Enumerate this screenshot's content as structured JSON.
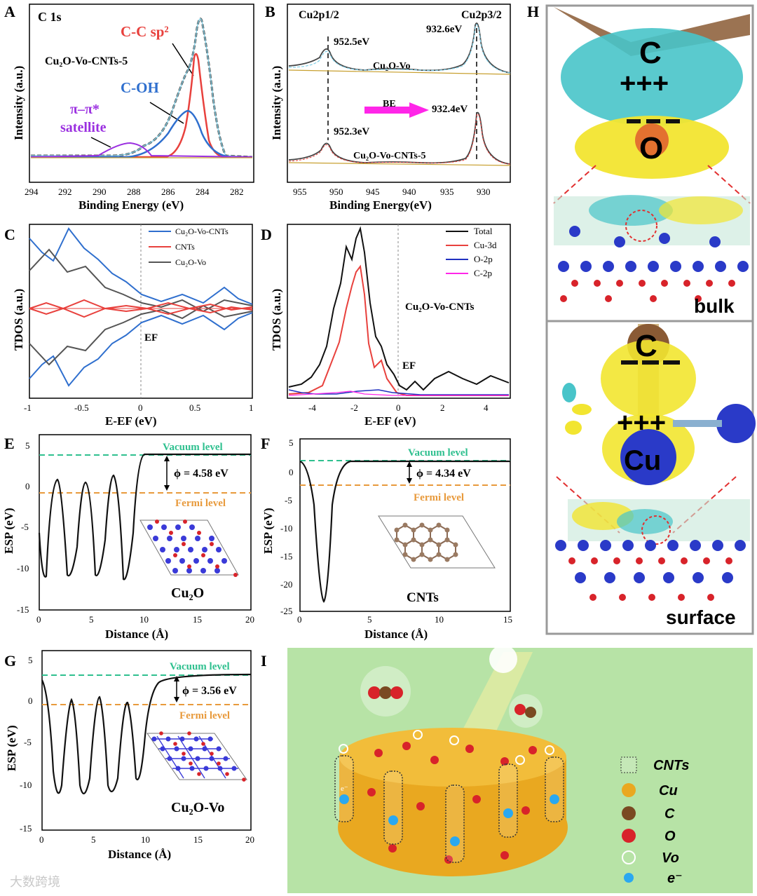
{
  "figure": {
    "panels": {
      "A": {
        "letter": "A",
        "element": "C 1s",
        "sample": "Cu₂O-Vo-CNTs-5",
        "peaks": [
          "C-C sp²",
          "C-OH",
          "π–π*",
          "satellite"
        ],
        "xlabel": "Binding Energy (eV)",
        "ylabel": "Intensity (a.u.)",
        "xticks": [
          "294",
          "292",
          "290",
          "288",
          "286",
          "284",
          "282"
        ]
      },
      "B": {
        "letter": "B",
        "labels": [
          "Cu2p1/2",
          "Cu2p3/2"
        ],
        "energies": [
          "952.5eV",
          "932.6eV",
          "952.3eV",
          "932.4eV"
        ],
        "arrow_label": "BE",
        "samples": [
          "Cu₂O-Vo",
          "Cu₂O-Vo-CNTs-5"
        ],
        "xlabel": "Binding Energy(eV)",
        "ylabel": "Intensity (a.u.)",
        "xticks": [
          "955",
          "950",
          "945",
          "940",
          "935",
          "930"
        ]
      },
      "C": {
        "letter": "C",
        "legend": [
          "Cu₂O-Vo-CNTs",
          "CNTs",
          "Cu₂O-Vo"
        ],
        "ef": "EF",
        "xlabel": "E-EF (eV)",
        "ylabel": "TDOS (a.u.)",
        "xticks": [
          "-1",
          "-0.5",
          "0",
          "0.5",
          "1"
        ]
      },
      "D": {
        "letter": "D",
        "legend": [
          "Total",
          "Cu-3d",
          "O-2p",
          "C-2p"
        ],
        "sample": "Cu₂O-Vo-CNTs",
        "ef": "EF",
        "xlabel": "E-EF (eV)",
        "ylabel": "TDOS (a.u.)",
        "xticks": [
          "-4",
          "-2",
          "0",
          "2",
          "4"
        ]
      },
      "E": {
        "letter": "E",
        "vacuum": "Vacuum level",
        "fermi": "Fermi level",
        "phi": "ϕ = 4.58 eV",
        "sample": "Cu₂O",
        "xlabel": "Distance (Å)",
        "ylabel": "ESP (eV)",
        "xticks": [
          "0",
          "5",
          "10",
          "15",
          "20"
        ],
        "yticks": [
          "5",
          "0",
          "-5",
          "-10",
          "-15"
        ]
      },
      "F": {
        "letter": "F",
        "vacuum": "Vacuum level",
        "fermi": "Fermi level",
        "phi": "ϕ = 4.34 eV",
        "sample": "CNTs",
        "xlabel": "Distance (Å)",
        "ylabel": "ESP (eV)",
        "xticks": [
          "0",
          "5",
          "10",
          "15"
        ],
        "yticks": [
          "5",
          "0",
          "-5",
          "-10",
          "-15",
          "-20",
          "-25"
        ]
      },
      "G": {
        "letter": "G",
        "vacuum": "Vacuum level",
        "fermi": "Fermi level",
        "phi": "ϕ = 3.56 eV",
        "sample": "Cu₂O-Vo",
        "xlabel": "Distance (Å)",
        "ylabel": "ESP (eV)",
        "xticks": [
          "0",
          "5",
          "10",
          "15",
          "20"
        ],
        "yticks": [
          "5",
          "0",
          "-5",
          "-10",
          "-15"
        ]
      },
      "H": {
        "letter": "H",
        "bulk": "bulk",
        "surface": "surface",
        "atom_c": "C",
        "atom_o": "O",
        "atom_cu": "Cu"
      },
      "I": {
        "letter": "I",
        "electron": "e⁻",
        "legend": [
          "CNTs",
          "Cu",
          "C",
          "O",
          "Vo",
          "e⁻"
        ]
      }
    },
    "watermark": "大数跨境"
  },
  "colors": {
    "red": "#e8413d",
    "blue": "#2f6fce",
    "purple": "#9b30e0",
    "black": "#111111",
    "cyan": "#48c4c9",
    "yellow": "#f2e530",
    "green_bg": "#b7e3a6",
    "vacuum": "#2fc08f",
    "fermi": "#e89a3c",
    "magenta": "#ff26e8",
    "cu_atom": "#e9a820",
    "o_atom": "#d8232a",
    "c_atom": "#7a4a22"
  }
}
